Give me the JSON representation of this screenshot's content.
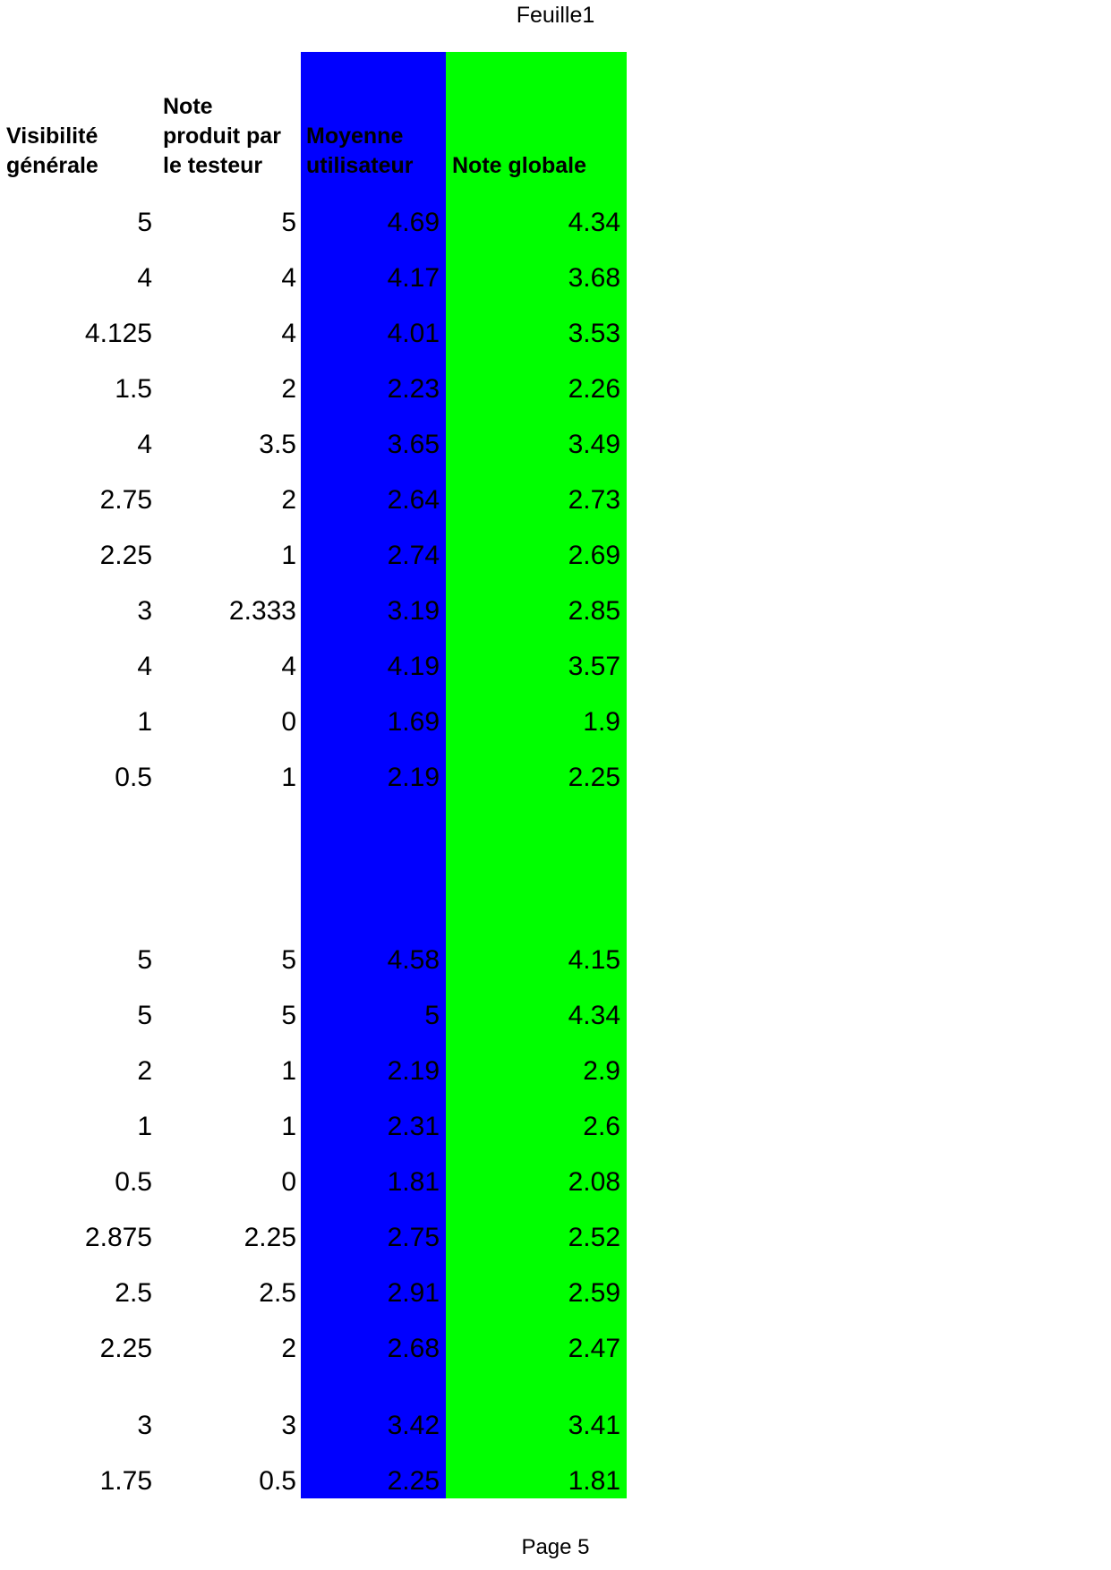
{
  "page": {
    "title": "Feuille1",
    "footer": "Page 5",
    "background": "#FFFFFF",
    "text_color": "#000000"
  },
  "table": {
    "columns": [
      {
        "id": "visibilite-generale",
        "label": "Visibilité\ngénérale",
        "bg": null
      },
      {
        "id": "note-produit-testeur",
        "label": "Note\nproduit par\nle testeur",
        "bg": null
      },
      {
        "id": "moyenne-utilisateur",
        "label": "Moyenne\nutilisateur",
        "bg": "#0000FF"
      },
      {
        "id": "note-globale",
        "label": "Note globale",
        "bg": "#00FF00"
      }
    ],
    "rows": [
      [
        "5",
        "5",
        "4.69",
        "4.34"
      ],
      [
        "4",
        "4",
        "4.17",
        "3.68"
      ],
      [
        "4.125",
        "4",
        "4.01",
        "3.53"
      ],
      [
        "1.5",
        "2",
        "2.23",
        "2.26"
      ],
      [
        "4",
        "3.5",
        "3.65",
        "3.49"
      ],
      [
        "2.75",
        "2",
        "2.64",
        "2.73"
      ],
      [
        "2.25",
        "1",
        "2.74",
        "2.69"
      ],
      [
        "3",
        "2.333",
        "3.19",
        "2.85"
      ],
      [
        "4",
        "4",
        "4.19",
        "3.57"
      ],
      [
        "1",
        "0",
        "1.69",
        "1.9"
      ],
      [
        "0.5",
        "1",
        "2.19",
        "2.25"
      ],
      {
        "spacer": "large"
      },
      [
        "5",
        "5",
        "4.58",
        "4.15"
      ],
      [
        "5",
        "5",
        "5",
        "4.34"
      ],
      [
        "2",
        "1",
        "2.19",
        "2.9"
      ],
      [
        "1",
        "1",
        "2.31",
        "2.6"
      ],
      [
        "0.5",
        "0",
        "1.81",
        "2.08"
      ],
      [
        "2.875",
        "2.25",
        "2.75",
        "2.52"
      ],
      [
        "2.5",
        "2.5",
        "2.91",
        "2.59"
      ],
      [
        "2.25",
        "2",
        "2.68",
        "2.47"
      ],
      {
        "spacer": "small"
      },
      [
        "3",
        "3",
        "3.42",
        "3.41"
      ],
      [
        "1.75",
        "0.5",
        "2.25",
        "1.81"
      ]
    ]
  }
}
